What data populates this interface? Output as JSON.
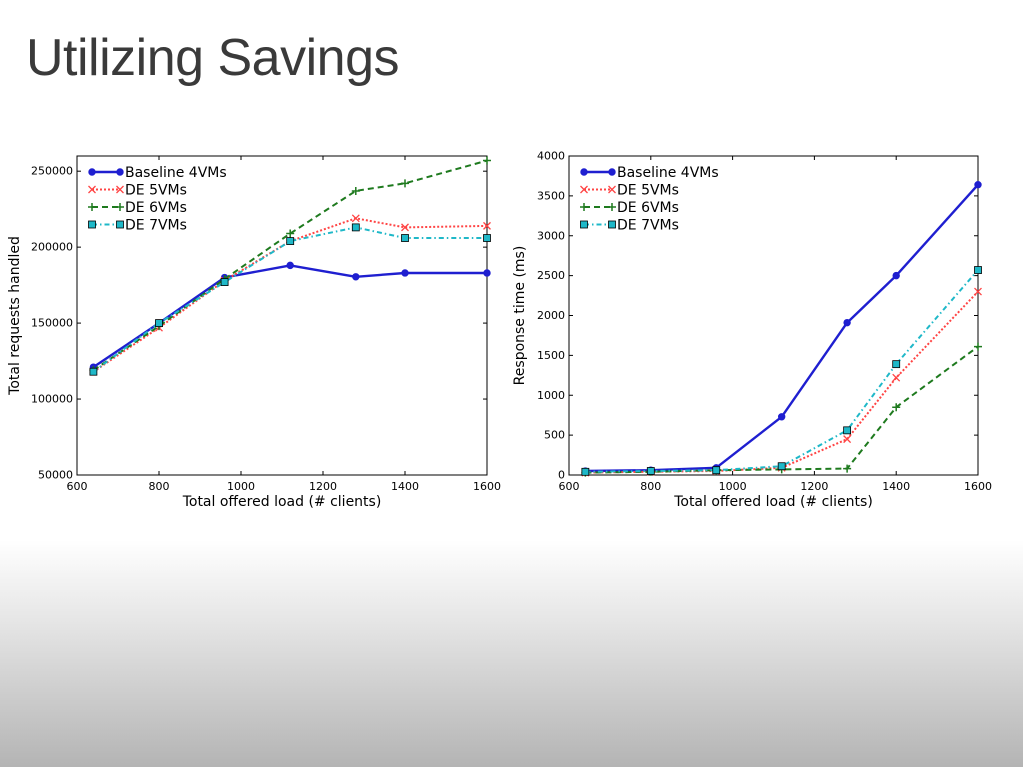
{
  "slide": {
    "title": "Utilizing Savings"
  },
  "chart_data": [
    {
      "type": "line",
      "title": "",
      "xlabel": "Total offered load (# clients)",
      "ylabel": "Total requests handled",
      "xlim": [
        600,
        1600
      ],
      "ylim": [
        50000,
        260000
      ],
      "xticks": [
        600,
        800,
        1000,
        1200,
        1400,
        1600
      ],
      "yticks": [
        50000,
        100000,
        150000,
        200000,
        250000
      ],
      "legend_position": "top-left",
      "grid": false,
      "series": [
        {
          "name": "Baseline 4VMs",
          "color": "#1f1fd0",
          "style": "solid",
          "marker": "dot",
          "x": [
            640,
            800,
            960,
            1120,
            1280,
            1400,
            1600
          ],
          "y": [
            121000,
            150000,
            180000,
            188000,
            180500,
            183000,
            183000
          ]
        },
        {
          "name": "DE 5VMs",
          "color": "#ff4444",
          "style": "dotted",
          "marker": "x",
          "x": [
            640,
            800,
            960,
            1120,
            1280,
            1400,
            1600
          ],
          "y": [
            118000,
            147000,
            178000,
            204000,
            219000,
            213000,
            214000
          ]
        },
        {
          "name": "DE 6VMs",
          "color": "#1e7a1e",
          "style": "dashed",
          "marker": "plus",
          "x": [
            640,
            800,
            960,
            1120,
            1280,
            1400,
            1600
          ],
          "y": [
            119000,
            148000,
            179000,
            209000,
            237000,
            242000,
            257000
          ]
        },
        {
          "name": "DE 7VMs",
          "color": "#1fb8c8",
          "style": "dashdot",
          "marker": "square",
          "x": [
            640,
            800,
            960,
            1120,
            1280,
            1400,
            1600
          ],
          "y": [
            118000,
            150000,
            177000,
            204000,
            213000,
            206000,
            206000
          ]
        }
      ]
    },
    {
      "type": "line",
      "title": "",
      "xlabel": "Total offered load (# clients)",
      "ylabel": "Response time (ms)",
      "xlim": [
        600,
        1600
      ],
      "ylim": [
        0,
        4000
      ],
      "xticks": [
        600,
        800,
        1000,
        1200,
        1400,
        1600
      ],
      "yticks": [
        0,
        500,
        1000,
        1500,
        2000,
        2500,
        3000,
        3500,
        4000
      ],
      "legend_position": "top-left",
      "grid": false,
      "series": [
        {
          "name": "Baseline 4VMs",
          "color": "#1f1fd0",
          "style": "solid",
          "marker": "dot",
          "x": [
            640,
            800,
            960,
            1120,
            1280,
            1400,
            1600
          ],
          "y": [
            50,
            60,
            90,
            730,
            1910,
            2500,
            3640
          ]
        },
        {
          "name": "DE 5VMs",
          "color": "#ff4444",
          "style": "dotted",
          "marker": "x",
          "x": [
            640,
            800,
            960,
            1120,
            1280,
            1400,
            1600
          ],
          "y": [
            30,
            40,
            50,
            90,
            450,
            1220,
            2300
          ]
        },
        {
          "name": "DE 6VMs",
          "color": "#1e7a1e",
          "style": "dashed",
          "marker": "plus",
          "x": [
            640,
            800,
            960,
            1120,
            1280,
            1400,
            1600
          ],
          "y": [
            30,
            40,
            60,
            70,
            80,
            850,
            1610
          ]
        },
        {
          "name": "DE 7VMs",
          "color": "#1fb8c8",
          "style": "dashdot",
          "marker": "square",
          "x": [
            640,
            800,
            960,
            1120,
            1280,
            1400,
            1600
          ],
          "y": [
            40,
            50,
            60,
            110,
            560,
            1390,
            2570
          ]
        }
      ]
    }
  ]
}
